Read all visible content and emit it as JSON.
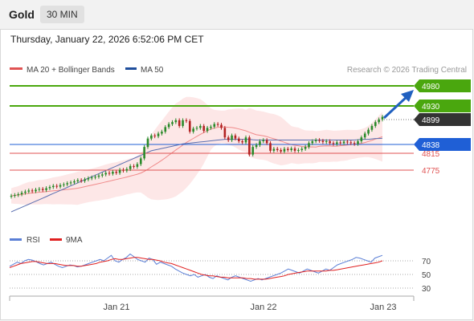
{
  "header": {
    "title": "Gold",
    "timeframe": "30 MIN"
  },
  "timestamp": "Thursday, January 22, 2026 6:52:06 PM CET",
  "legend": {
    "ma20": "MA 20 + Bollinger Bands",
    "ma50": "MA 50",
    "credit": "Research © 2026 Trading Central"
  },
  "rsi_legend": {
    "rsi": "RSI",
    "ma": "9MA"
  },
  "colors": {
    "green": "#4aa70e",
    "blue": "#1f5fd6",
    "red": "#e05353",
    "dark": "#333333",
    "band_fill": "#fde1e1",
    "candle": "#2a8a2a",
    "candle_down": "#b22222",
    "rsi": "#5b7fd6",
    "rsi_ma": "#e02020"
  },
  "chart_data": {
    "type": "candlestick",
    "price_range": [
      4700,
      5000
    ],
    "levels": [
      {
        "value": 4980,
        "label": "4980",
        "kind": "resistance",
        "color": "#4aa70e"
      },
      {
        "value": 4930,
        "label": "4930",
        "kind": "resistance",
        "color": "#4aa70e"
      },
      {
        "value": 4899,
        "label": "4899",
        "kind": "last",
        "color": "#333333"
      },
      {
        "value": 4838,
        "label": "4838",
        "kind": "pivot",
        "color": "#1f5fd6"
      },
      {
        "value": 4815,
        "label": "4815",
        "kind": "support",
        "color": "#e05353"
      },
      {
        "value": 4775,
        "label": "4775",
        "kind": "support",
        "color": "#e05353"
      }
    ],
    "x_ticks": [
      "Jan 21",
      "Jan 22",
      "Jan 23"
    ],
    "closes": [
      4692,
      4694,
      4696,
      4700,
      4703,
      4706,
      4704,
      4708,
      4710,
      4707,
      4712,
      4715,
      4718,
      4716,
      4720,
      4722,
      4725,
      4727,
      4730,
      4733,
      4731,
      4735,
      4738,
      4740,
      4742,
      4745,
      4748,
      4752,
      4750,
      4755,
      4752,
      4760,
      4758,
      4762,
      4770,
      4768,
      4775,
      4790,
      4820,
      4842,
      4850,
      4848,
      4855,
      4860,
      4872,
      4880,
      4885,
      4890,
      4875,
      4890,
      4888,
      4860,
      4868,
      4870,
      4875,
      4862,
      4870,
      4873,
      4880,
      4878,
      4870,
      4845,
      4838,
      4850,
      4842,
      4835,
      4832,
      4845,
      4800,
      4820,
      4825,
      4835,
      4838,
      4830,
      4810,
      4815,
      4812,
      4808,
      4815,
      4812,
      4816,
      4810,
      4812,
      4815,
      4820,
      4830,
      4835,
      4838,
      4836,
      4833,
      4835,
      4830,
      4828,
      4832,
      4830,
      4834,
      4832,
      4830,
      4828,
      4835,
      4845,
      4855,
      4865,
      4875,
      4885,
      4892,
      4899
    ],
    "ma50": [
      4650,
      4654,
      4658,
      4662,
      4666,
      4670,
      4674,
      4678,
      4682,
      4686,
      4690,
      4694,
      4698,
      4702,
      4706,
      4710,
      4714,
      4718,
      4722,
      4726,
      4730,
      4734,
      4738,
      4742,
      4746,
      4750,
      4754,
      4758,
      4762,
      4766,
      4770,
      4774,
      4778,
      4782,
      4786,
      4790,
      4794,
      4798,
      4802,
      4806,
      4810,
      4812,
      4814,
      4816,
      4818,
      4820,
      4822,
      4824,
      4826,
      4828,
      4829,
      4830,
      4831,
      4832,
      4833,
      4834,
      4835,
      4836,
      4837,
      4838,
      4839,
      4840,
      4840,
      4840,
      4840,
      4840,
      4840,
      4840,
      4840,
      4839,
      4838,
      4838,
      4838,
      4838,
      4838,
      4838,
      4838,
      4838,
      4838,
      4838,
      4838,
      4838,
      4838,
      4838,
      4838,
      4838,
      4838,
      4838,
      4838,
      4838,
      4838,
      4838,
      4838,
      4838,
      4838,
      4838,
      4838,
      4838,
      4838,
      4839,
      4840,
      4840,
      4840,
      4841,
      4842,
      4842,
      4843
    ],
    "rsi": {
      "levels": [
        70,
        50,
        30
      ],
      "values": [
        62,
        65,
        68,
        66,
        70,
        72,
        71,
        69,
        66,
        64,
        66,
        68,
        65,
        62,
        60,
        62,
        64,
        63,
        61,
        62,
        64,
        66,
        68,
        70,
        72,
        70,
        74,
        78,
        70,
        68,
        72,
        75,
        80,
        76,
        72,
        70,
        68,
        74,
        72,
        65,
        68,
        66,
        64,
        62,
        58,
        55,
        52,
        50,
        48,
        50,
        46,
        48,
        50,
        46,
        44,
        48,
        46,
        44,
        42,
        46,
        48,
        46,
        44,
        42,
        40,
        42,
        44,
        42,
        44,
        46,
        48,
        50,
        52,
        55,
        58,
        56,
        54,
        52,
        55,
        58,
        56,
        54,
        52,
        55,
        58,
        56,
        60,
        64,
        66,
        68,
        70,
        72,
        75,
        74,
        72,
        70,
        68,
        74,
        76,
        78
      ],
      "ma": [
        60,
        62,
        64,
        66,
        67,
        68,
        69,
        69,
        68,
        67,
        66,
        66,
        66,
        65,
        64,
        63,
        63,
        63,
        62,
        62,
        63,
        64,
        65,
        66,
        68,
        69,
        70,
        72,
        73,
        72,
        72,
        73,
        74,
        75,
        75,
        74,
        73,
        72,
        72,
        71,
        70,
        68,
        67,
        66,
        64,
        62,
        60,
        58,
        56,
        54,
        52,
        50,
        49,
        48,
        48,
        47,
        46,
        46,
        45,
        45,
        45,
        45,
        45,
        44,
        44,
        43,
        43,
        43,
        43,
        44,
        45,
        46,
        47,
        48,
        50,
        51,
        52,
        53,
        54,
        55,
        55,
        55,
        55,
        55,
        55,
        56,
        56,
        57,
        58,
        59,
        60,
        61,
        62,
        63,
        64,
        65,
        66,
        67,
        68,
        70
      ],
      "x_ticks": [
        "70",
        "50",
        "30"
      ]
    }
  }
}
